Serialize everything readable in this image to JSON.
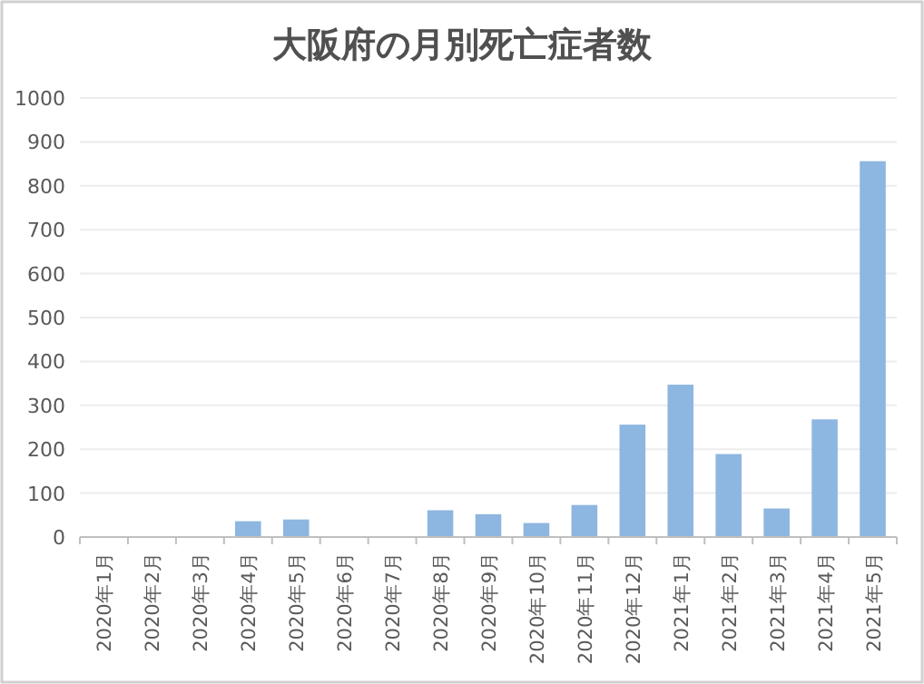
{
  "chart_data": {
    "type": "bar",
    "title": "大阪府の月別死亡症者数",
    "categories": [
      "2020年1月",
      "2020年2月",
      "2020年3月",
      "2020年4月",
      "2020年5月",
      "2020年6月",
      "2020年7月",
      "2020年8月",
      "2020年9月",
      "2020年10月",
      "2020年11月",
      "2020年12月",
      "2021年1月",
      "2021年2月",
      "2021年3月",
      "2021年4月",
      "2021年5月"
    ],
    "values": [
      0,
      0,
      0,
      36,
      40,
      0,
      0,
      61,
      52,
      32,
      73,
      256,
      347,
      189,
      65,
      268,
      856
    ],
    "color": "#8db6e0",
    "ylim": [
      0,
      1000
    ],
    "yticks": [
      0,
      100,
      200,
      300,
      400,
      500,
      600,
      700,
      800,
      900,
      1000
    ],
    "grid": "y"
  }
}
